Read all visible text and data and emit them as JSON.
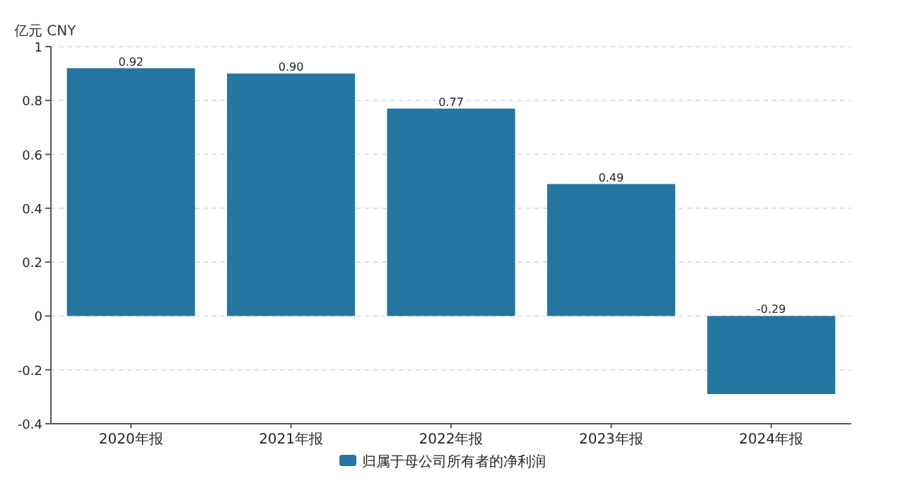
{
  "chart_data": {
    "type": "bar",
    "ylabel": "亿元  CNY",
    "categories": [
      "2020年报",
      "2021年报",
      "2022年报",
      "2023年报",
      "2024年报"
    ],
    "series": [
      {
        "name": "归属于母公司所有者的净利润",
        "color": "#2476a1",
        "values": [
          0.92,
          0.9,
          0.77,
          0.49,
          -0.29
        ],
        "value_labels": [
          "0.92",
          "0.90",
          "0.77",
          "0.49",
          "-0.29"
        ]
      }
    ],
    "ylim": [
      -0.4,
      1
    ],
    "yticks": [
      -0.4,
      -0.2,
      0,
      0.2,
      0.4,
      0.6,
      0.8,
      1
    ],
    "grid": "y",
    "legend": "bottom"
  }
}
